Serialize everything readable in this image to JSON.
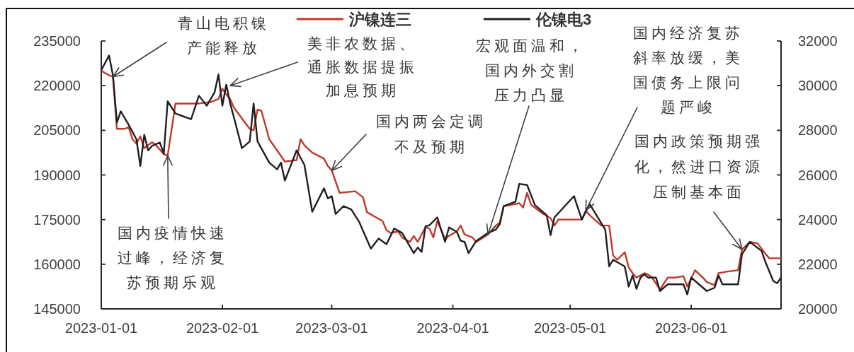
{
  "chart_data": {
    "type": "line",
    "legend": "top",
    "xlim": [
      "2023-01-01",
      "2023-06-24"
    ],
    "xticks": [
      "2023-01-01",
      "2023-02-01",
      "2023-03-01",
      "2023-04-01",
      "2023-05-01",
      "2023-06-01"
    ],
    "ylim": [
      145000,
      235000
    ],
    "yticks": [
      145000,
      160000,
      175000,
      190000,
      205000,
      220000,
      235000
    ],
    "y2lim": [
      20000,
      32000
    ],
    "y2ticks": [
      20000,
      22000,
      24000,
      26000,
      28000,
      30000,
      32000
    ],
    "series": [
      {
        "name": "沪镍连三",
        "color": "#c0392b",
        "x": [
          "2023-01-01",
          "2023-01-03",
          "2023-01-04",
          "2023-01-05",
          "2023-01-07",
          "2023-01-08",
          "2023-01-09",
          "2023-01-10",
          "2023-01-11",
          "2023-01-12",
          "2023-01-14",
          "2023-01-15",
          "2023-01-17",
          "2023-01-18",
          "2023-01-20",
          "2023-01-26",
          "2023-01-29",
          "2023-01-31",
          "2023-02-01",
          "2023-02-02",
          "2023-02-03",
          "2023-02-04",
          "2023-02-08",
          "2023-02-09",
          "2023-02-10",
          "2023-02-11",
          "2023-02-13",
          "2023-02-17",
          "2023-02-20",
          "2023-02-21",
          "2023-02-22",
          "2023-02-24",
          "2023-02-27",
          "2023-02-28",
          "2023-03-01",
          "2023-03-03",
          "2023-03-07",
          "2023-03-09",
          "2023-03-10",
          "2023-03-14",
          "2023-03-15",
          "2023-03-16",
          "2023-03-18",
          "2023-03-19",
          "2023-03-21",
          "2023-03-22",
          "2023-03-23",
          "2023-03-25",
          "2023-03-26",
          "2023-03-27",
          "2023-03-28",
          "2023-03-30",
          "2023-03-31",
          "2023-04-02",
          "2023-04-03",
          "2023-04-04",
          "2023-04-06",
          "2023-04-07",
          "2023-04-10",
          "2023-04-12",
          "2023-04-13",
          "2023-04-14",
          "2023-04-18",
          "2023-04-19",
          "2023-04-20",
          "2023-04-21",
          "2023-04-24",
          "2023-04-26",
          "2023-04-27",
          "2023-04-28",
          "2023-05-04",
          "2023-05-05",
          "2023-05-06",
          "2023-05-09",
          "2023-05-11",
          "2023-05-12",
          "2023-05-13",
          "2023-05-15",
          "2023-05-16",
          "2023-05-17",
          "2023-05-18",
          "2023-05-20",
          "2023-05-21",
          "2023-05-22",
          "2023-05-24",
          "2023-05-26",
          "2023-05-28",
          "2023-05-30",
          "2023-05-31",
          "2023-06-02",
          "2023-06-04",
          "2023-06-05",
          "2023-06-07",
          "2023-06-08",
          "2023-06-10",
          "2023-06-13",
          "2023-06-14",
          "2023-06-16",
          "2023-06-18",
          "2023-06-20",
          "2023-06-21",
          "2023-06-24"
        ],
        "values": [
          225000,
          223500,
          223000,
          205500,
          205500,
          206000,
          202000,
          200500,
          203000,
          199000,
          201000,
          200000,
          197000,
          196500,
          214000,
          214000,
          214500,
          215500,
          219000,
          217000,
          215500,
          212500,
          205500,
          205000,
          212000,
          211500,
          202000,
          194500,
          195000,
          202000,
          200000,
          197500,
          195500,
          193000,
          191500,
          184000,
          184500,
          182500,
          177500,
          174500,
          171500,
          170500,
          171000,
          169000,
          167500,
          169500,
          167500,
          172500,
          172000,
          169000,
          174500,
          168500,
          169500,
          171000,
          173000,
          170000,
          169000,
          167500,
          170000,
          173000,
          174000,
          179500,
          180500,
          179000,
          184000,
          180000,
          177000,
          175500,
          173000,
          175000,
          175000,
          178000,
          176500,
          173000,
          173000,
          163000,
          161500,
          164000,
          159000,
          157000,
          155500,
          157000,
          156500,
          155500,
          151500,
          155500,
          155500,
          156000,
          152500,
          158000,
          155500,
          154000,
          153000,
          157000,
          157500,
          158000,
          165000,
          167500,
          167000,
          163500,
          162000,
          162000
        ]
      },
      {
        "name": "伦镍电3",
        "color": "#1f1f1f",
        "axis": "y2",
        "x": [
          "2023-01-01",
          "2023-01-03",
          "2023-01-04",
          "2023-01-05",
          "2023-01-06",
          "2023-01-08",
          "2023-01-10",
          "2023-01-11",
          "2023-01-12",
          "2023-01-13",
          "2023-01-14",
          "2023-01-16",
          "2023-01-17",
          "2023-01-18",
          "2023-01-20",
          "2023-01-24",
          "2023-01-26",
          "2023-01-28",
          "2023-01-30",
          "2023-01-31",
          "2023-02-01",
          "2023-02-02",
          "2023-02-03",
          "2023-02-04",
          "2023-02-06",
          "2023-02-08",
          "2023-02-09",
          "2023-02-10",
          "2023-02-13",
          "2023-02-15",
          "2023-02-16",
          "2023-02-17",
          "2023-02-20",
          "2023-02-22",
          "2023-02-24",
          "2023-02-27",
          "2023-02-28",
          "2023-03-01",
          "2023-03-02",
          "2023-03-04",
          "2023-03-06",
          "2023-03-08",
          "2023-03-11",
          "2023-03-13",
          "2023-03-15",
          "2023-03-17",
          "2023-03-19",
          "2023-03-22",
          "2023-03-23",
          "2023-03-24",
          "2023-03-25",
          "2023-03-26",
          "2023-03-28",
          "2023-03-30",
          "2023-03-31",
          "2023-04-02",
          "2023-04-03",
          "2023-04-04",
          "2023-04-05",
          "2023-04-07",
          "2023-04-10",
          "2023-04-12",
          "2023-04-13",
          "2023-04-14",
          "2023-04-17",
          "2023-04-18",
          "2023-04-20",
          "2023-04-22",
          "2023-04-25",
          "2023-04-26",
          "2023-04-27",
          "2023-05-02",
          "2023-05-04",
          "2023-05-06",
          "2023-05-10",
          "2023-05-11",
          "2023-05-12",
          "2023-05-15",
          "2023-05-16",
          "2023-05-17",
          "2023-05-18",
          "2023-05-19",
          "2023-05-20",
          "2023-05-21",
          "2023-05-23",
          "2023-05-24",
          "2023-05-26",
          "2023-05-30",
          "2023-05-31",
          "2023-06-01",
          "2023-06-03",
          "2023-06-05",
          "2023-06-07",
          "2023-06-08",
          "2023-06-09",
          "2023-06-13",
          "2023-06-14",
          "2023-06-16",
          "2023-06-19",
          "2023-06-20",
          "2023-06-22",
          "2023-06-23",
          "2023-06-24"
        ],
        "values": [
          30700,
          31350,
          30450,
          28350,
          28850,
          28250,
          27600,
          26400,
          27800,
          27100,
          27300,
          27450,
          26950,
          29300,
          28750,
          28500,
          29550,
          29100,
          29700,
          30500,
          29100,
          30050,
          29200,
          28550,
          27200,
          27500,
          29200,
          27500,
          26550,
          26250,
          26550,
          25750,
          27100,
          26450,
          24350,
          25400,
          24950,
          25050,
          24250,
          24600,
          24450,
          23900,
          22700,
          23150,
          22900,
          23600,
          23400,
          22500,
          22750,
          22550,
          23700,
          23750,
          24100,
          23000,
          23650,
          23450,
          23050,
          23000,
          22500,
          23050,
          23400,
          23550,
          23800,
          24600,
          24800,
          25600,
          25550,
          24650,
          24200,
          23300,
          24100,
          25050,
          24000,
          24700,
          23550,
          21900,
          22200,
          21900,
          21000,
          21500,
          20900,
          21400,
          21550,
          21400,
          21400,
          20800,
          21100,
          21100,
          20650,
          21400,
          21100,
          20800,
          20950,
          21500,
          21100,
          21100,
          22450,
          23000,
          22600,
          22100,
          21250,
          21150,
          21400
        ]
      }
    ],
    "annotations": [
      {
        "text": "青山电积镍产能释放",
        "x": "2023-01-04",
        "y": 223000
      },
      {
        "text": "美非农数据、通胀数据提振加息预期",
        "x": "2023-02-03",
        "y": 220000
      },
      {
        "text": "国内两会定调不及预期",
        "x": "2023-03-01",
        "y": 191500
      },
      {
        "text": "宏观面温和，国内外交割压力凸显",
        "x": "2023-04-10",
        "y": 170000
      },
      {
        "text": "国内经济复苏斜率放缓，美国债务上限问题严峻",
        "x": "2023-05-05",
        "y": 178000
      },
      {
        "text": "国内政策预期强化，然进口资源压制基本面",
        "x": "2023-06-14",
        "y": 165000
      },
      {
        "text": "国内疫情快速过峰，经济复苏预期乐观",
        "x": "2023-01-18",
        "y": 196500
      }
    ]
  }
}
